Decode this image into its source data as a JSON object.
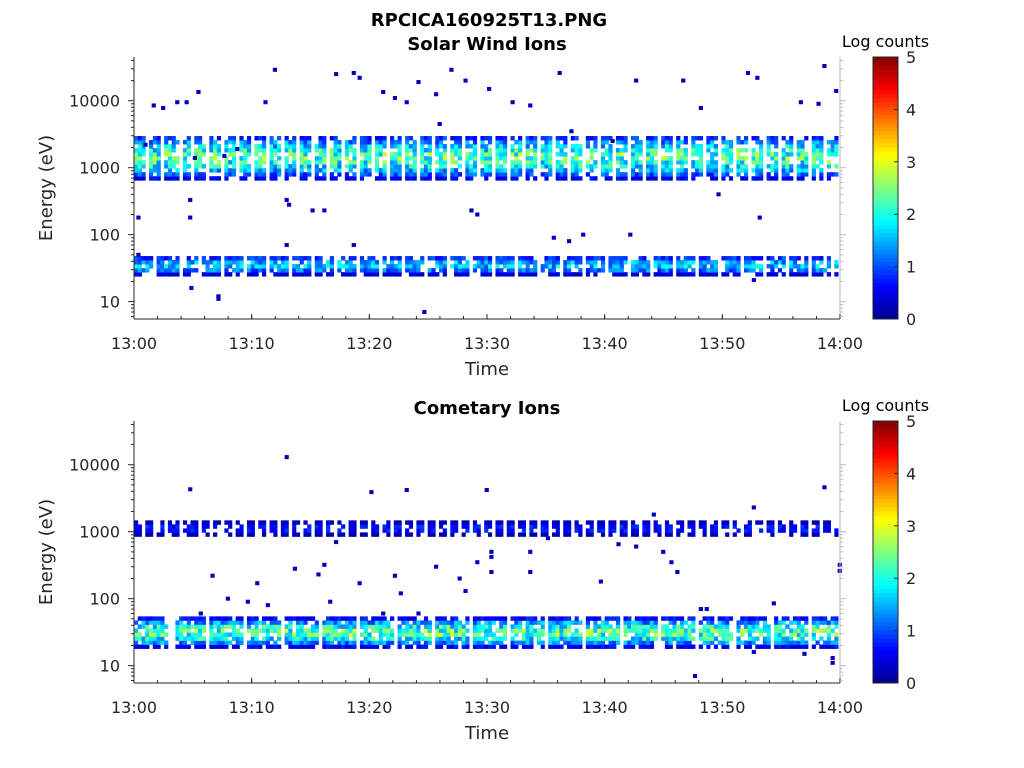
{
  "figure": {
    "title": "RPCICA160925T13.PNG"
  },
  "colormap": [
    "#00008f",
    "#0000ff",
    "#0080ff",
    "#00ffff",
    "#80ff80",
    "#ffff00",
    "#ff8000",
    "#ff0000",
    "#800000"
  ],
  "chart_data": [
    {
      "type": "heatmap",
      "title": "Solar Wind Ions",
      "xlabel": "Time",
      "ylabel": "Energy (eV)",
      "x_ticks": [
        "13:00",
        "13:10",
        "13:20",
        "13:30",
        "13:40",
        "13:50",
        "14:00"
      ],
      "x_range_min": [
        0,
        60
      ],
      "y_scale": "log",
      "y_range": [
        5.5,
        45000
      ],
      "y_ticks": [
        {
          "value": 10,
          "label": "10"
        },
        {
          "value": 100,
          "label": "100"
        },
        {
          "value": 1000,
          "label": "1000"
        },
        {
          "value": 10000,
          "label": "10000"
        }
      ],
      "colorbar": {
        "label": "Log counts",
        "min": 0,
        "max": 5,
        "ticks": [
          "0",
          "1",
          "2",
          "3",
          "4",
          "5"
        ]
      },
      "bands": [
        {
          "e_lo": 650,
          "e_hi": 2800,
          "peak": 2.6,
          "gap_every": 3
        },
        {
          "e_lo": 24,
          "e_hi": 45,
          "peak": 1.9,
          "gap_every": 5
        }
      ],
      "sparse_cells": [
        [
          0.8,
          2200,
          0.3
        ],
        [
          1.5,
          8500,
          0.2
        ],
        [
          2.3,
          7800,
          0.3
        ],
        [
          3.5,
          9500,
          0.2
        ],
        [
          4.3,
          9500,
          0.2
        ],
        [
          5.3,
          13500,
          0.3
        ],
        [
          4.6,
          330,
          0.2
        ],
        [
          4.6,
          180,
          0.3
        ],
        [
          5.0,
          1400,
          0.1
        ],
        [
          7.5,
          1500,
          0.3
        ],
        [
          8.6,
          1900,
          0.2
        ],
        [
          11.8,
          29000,
          0.1
        ],
        [
          11.0,
          9500,
          0.3
        ],
        [
          12.8,
          330,
          0.2
        ],
        [
          13.0,
          280,
          0.3
        ],
        [
          15.0,
          230,
          0.2
        ],
        [
          16.0,
          230,
          0.3
        ],
        [
          17.0,
          25000,
          0.2
        ],
        [
          18.5,
          26000,
          0.3
        ],
        [
          19.0,
          22000,
          0.2
        ],
        [
          21.0,
          13500,
          0.3
        ],
        [
          22.0,
          11000,
          0.2
        ],
        [
          23.0,
          9500,
          0.3
        ],
        [
          24.0,
          19000,
          0.2
        ],
        [
          25.5,
          12500,
          0.3
        ],
        [
          26.8,
          29000,
          0.2
        ],
        [
          28.0,
          20000,
          0.3
        ],
        [
          29.0,
          200,
          0.2
        ],
        [
          30.0,
          15000,
          0.3
        ],
        [
          32.0,
          9500,
          0.2
        ],
        [
          33.5,
          8500,
          0.3
        ],
        [
          36.0,
          26000,
          0.2
        ],
        [
          38.0,
          100,
          0.3
        ],
        [
          42.0,
          100,
          0.2
        ],
        [
          42.5,
          20000,
          0.3
        ],
        [
          46.5,
          20000,
          0.2
        ],
        [
          48.0,
          7800,
          0.3
        ],
        [
          49.5,
          400,
          0.2
        ],
        [
          52.0,
          26000,
          0.3
        ],
        [
          52.8,
          22000,
          0.2
        ],
        [
          53.0,
          180,
          0.3
        ],
        [
          56.5,
          9500,
          0.2
        ],
        [
          58.0,
          9000,
          0.3
        ],
        [
          58.5,
          33000,
          0.2
        ],
        [
          59.5,
          14000,
          0.3
        ],
        [
          0.2,
          180,
          0.3
        ],
        [
          0.2,
          50,
          0.2
        ],
        [
          4.7,
          16,
          0.3
        ],
        [
          7.0,
          12,
          0.2
        ],
        [
          7.0,
          11,
          0.3
        ],
        [
          24.5,
          7,
          0.2
        ],
        [
          52.5,
          21,
          0.3
        ],
        [
          25.8,
          4500,
          0.2
        ],
        [
          37.0,
          3500,
          0.3
        ],
        [
          40.5,
          2500,
          0.2
        ],
        [
          36.8,
          80,
          0.2
        ],
        [
          35.5,
          90,
          0.3
        ],
        [
          28.5,
          230,
          0.2
        ],
        [
          12.8,
          70,
          0.2
        ],
        [
          18.5,
          70,
          0.2
        ]
      ]
    },
    {
      "type": "heatmap",
      "title": "Cometary Ions",
      "xlabel": "Time",
      "ylabel": "Energy (eV)",
      "x_ticks": [
        "13:00",
        "13:10",
        "13:20",
        "13:30",
        "13:40",
        "13:50",
        "14:00"
      ],
      "x_range_min": [
        0,
        60
      ],
      "y_scale": "log",
      "y_range": [
        5.5,
        45000
      ],
      "y_ticks": [
        {
          "value": 10,
          "label": "10"
        },
        {
          "value": 100,
          "label": "100"
        },
        {
          "value": 1000,
          "label": "1000"
        },
        {
          "value": 10000,
          "label": "10000"
        }
      ],
      "colorbar": {
        "label": "Log counts",
        "min": 0,
        "max": 5,
        "ticks": [
          "0",
          "1",
          "2",
          "3",
          "4",
          "5"
        ]
      },
      "bands": [
        {
          "e_lo": 850,
          "e_hi": 1300,
          "peak": 0.9,
          "gap_every": 2
        },
        {
          "e_lo": 18,
          "e_hi": 48,
          "peak": 2.7,
          "gap_every": 9
        }
      ],
      "sparse_cells": [
        [
          12.8,
          13000,
          0.2
        ],
        [
          4.6,
          4300,
          0.2
        ],
        [
          20.0,
          3900,
          0.2
        ],
        [
          23.0,
          4200,
          0.2
        ],
        [
          29.8,
          4200,
          0.2
        ],
        [
          52.5,
          2300,
          0.2
        ],
        [
          58.5,
          4600,
          0.3
        ],
        [
          13.5,
          280,
          0.3
        ],
        [
          15.5,
          230,
          0.2
        ],
        [
          19.0,
          170,
          0.3
        ],
        [
          22.0,
          220,
          0.2
        ],
        [
          29.0,
          350,
          0.3
        ],
        [
          30.2,
          500,
          0.2
        ],
        [
          30.2,
          420,
          0.3
        ],
        [
          30.2,
          250,
          0.2
        ],
        [
          33.5,
          500,
          0.3
        ],
        [
          33.5,
          250,
          0.2
        ],
        [
          39.5,
          180,
          0.3
        ],
        [
          44.8,
          500,
          0.2
        ],
        [
          45.5,
          350,
          0.3
        ],
        [
          46.0,
          250,
          0.2
        ],
        [
          48.0,
          70,
          0.2
        ],
        [
          48.5,
          70,
          0.3
        ],
        [
          54.2,
          85,
          0.2
        ],
        [
          5.5,
          60,
          0.2
        ],
        [
          6.5,
          220,
          0.3
        ],
        [
          7.8,
          100,
          0.2
        ],
        [
          9.5,
          90,
          0.3
        ],
        [
          10.3,
          170,
          0.2
        ],
        [
          11.2,
          80,
          0.3
        ],
        [
          16.5,
          90,
          0.2
        ],
        [
          16.0,
          320,
          0.3
        ],
        [
          21.0,
          60,
          0.2
        ],
        [
          22.5,
          120,
          0.3
        ],
        [
          24.0,
          60,
          0.2
        ],
        [
          25.5,
          300,
          0.3
        ],
        [
          27.5,
          200,
          0.2
        ],
        [
          28.0,
          130,
          0.3
        ],
        [
          47.5,
          7,
          0.2
        ],
        [
          52.5,
          16,
          0.3
        ],
        [
          56.8,
          15,
          0.2
        ],
        [
          59.2,
          13,
          0.3
        ],
        [
          59.2,
          11,
          0.2
        ],
        [
          59.8,
          320,
          0.3
        ],
        [
          59.8,
          260,
          0.2
        ],
        [
          17.0,
          700,
          0.2
        ],
        [
          35.0,
          800,
          0.3
        ],
        [
          41.0,
          650,
          0.2
        ],
        [
          42.5,
          600,
          0.2
        ],
        [
          44.0,
          1800,
          0.3
        ]
      ]
    }
  ]
}
